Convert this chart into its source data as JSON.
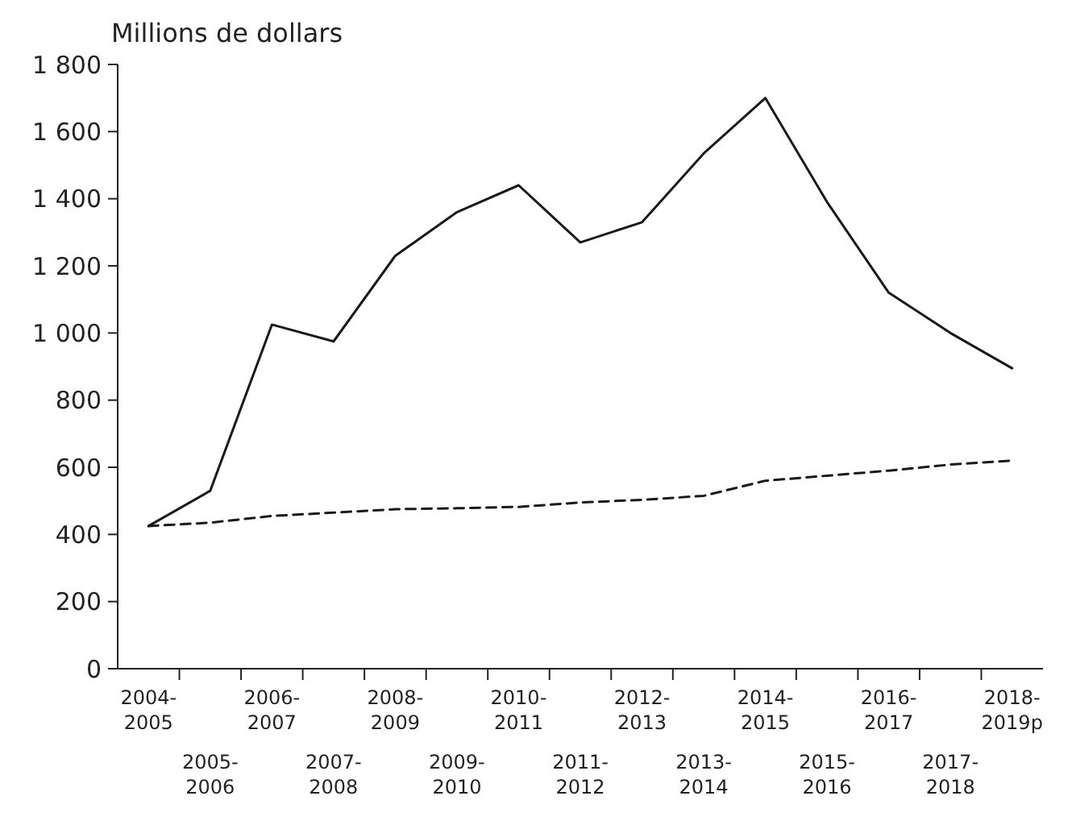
{
  "chart_data": {
    "type": "line",
    "ylabel": "Millions de dollars",
    "categories": [
      "2004-2005",
      "2005-2006",
      "2006-2007",
      "2007-2008",
      "2008-2009",
      "2009-2010",
      "2010-2011",
      "2011-2012",
      "2012-2013",
      "2013-2014",
      "2014-2015",
      "2015-2016",
      "2016-2017",
      "2017-2018",
      "2018-2019p"
    ],
    "series": [
      {
        "color": "#1a1a1a",
        "line_style": "solid",
        "values": [
          425,
          530,
          1025,
          975,
          1230,
          1360,
          1440,
          1270,
          1330,
          1535,
          1700,
          1390,
          1120,
          1000,
          895
        ]
      },
      {
        "color": "#1a1a1a",
        "line_style": "dashed",
        "values": [
          425,
          435,
          455,
          465,
          475,
          478,
          482,
          495,
          503,
          515,
          560,
          575,
          590,
          608,
          620
        ]
      }
    ],
    "ylim": [
      0,
      1800
    ],
    "yticks": [
      {
        "value": 0,
        "label": "0"
      },
      {
        "value": 200,
        "label": "200"
      },
      {
        "value": 400,
        "label": "400"
      },
      {
        "value": 600,
        "label": "600"
      },
      {
        "value": 800,
        "label": "800"
      },
      {
        "value": 1000,
        "label": "1 000"
      },
      {
        "value": 1200,
        "label": "1 200"
      },
      {
        "value": 1400,
        "label": "1 400"
      },
      {
        "value": 1600,
        "label": "1 600"
      },
      {
        "value": 1800,
        "label": "1 800"
      }
    ],
    "grid": false
  }
}
